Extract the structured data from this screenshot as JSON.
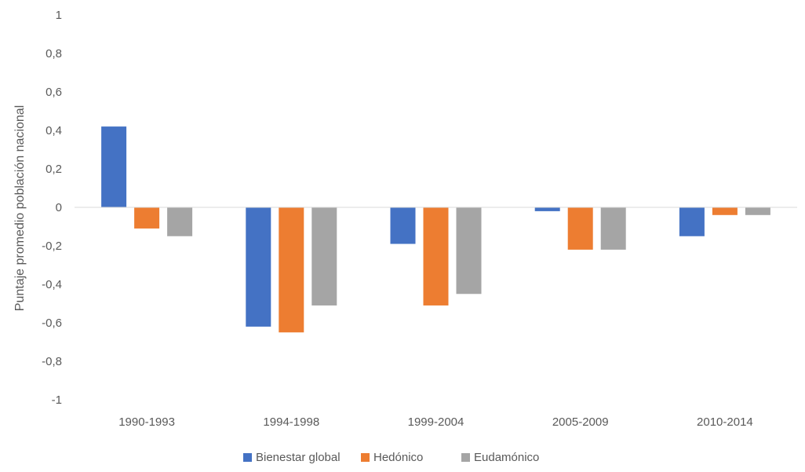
{
  "chart_data": {
    "type": "bar",
    "title": "",
    "xlabel": "",
    "ylabel": "Puntaje promedio población nacional",
    "categories": [
      "1990-1993",
      "1994-1998",
      "1999-2004",
      "2005-2009",
      "2010-2014"
    ],
    "series": [
      {
        "name": "Bienestar global",
        "color": "#4472C4",
        "values": [
          0.42,
          -0.62,
          -0.19,
          -0.02,
          -0.15
        ]
      },
      {
        "name": "Hedónico",
        "color": "#ED7D31",
        "values": [
          -0.11,
          -0.65,
          -0.51,
          -0.22,
          -0.04
        ]
      },
      {
        "name": "Eudamónico",
        "color": "#A5A5A5",
        "values": [
          -0.15,
          -0.51,
          -0.45,
          -0.22,
          -0.04
        ]
      }
    ],
    "ylim": [
      -1,
      1
    ],
    "yticks": [
      1,
      0.8,
      0.6,
      0.4,
      0.2,
      0,
      -0.2,
      -0.4,
      -0.6,
      -0.8,
      -1
    ],
    "ytick_labels": [
      "1",
      "0,8",
      "0,6",
      "0,4",
      "0,2",
      "0",
      "-0,2",
      "-0,4",
      "-0,6",
      "-0,8",
      "-1"
    ],
    "grid": false,
    "legend": "bottom"
  }
}
